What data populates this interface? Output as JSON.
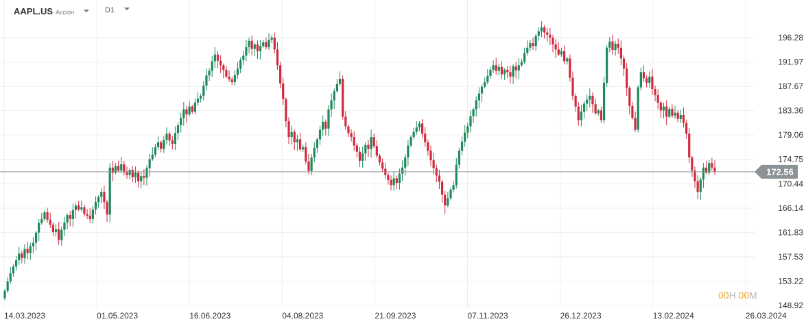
{
  "header": {
    "symbol": "AAPL.US",
    "instrument_type": "Acción",
    "timeframe": "D1"
  },
  "timer": {
    "hours": "00",
    "hours_unit": "H",
    "minutes": "00",
    "minutes_unit": "M"
  },
  "colors": {
    "up": "#1e8a5c",
    "down": "#d1293d",
    "grid": "#eeeeee",
    "price_line": "#8c9296",
    "timer_accent": "#f5a623"
  },
  "chart_data": {
    "type": "candlestick",
    "title": "AAPL.US",
    "x_tick_labels": [
      "14.03.2023",
      "01.05.2023",
      "16.06.2023",
      "04.08.2023",
      "21.09.2023",
      "07.11.2023",
      "26.12.2023",
      "13.02.2024",
      "26.03.2024"
    ],
    "y_tick_labels": [
      "196.28",
      "191.97",
      "187.67",
      "183.36",
      "179.06",
      "174.75",
      "170.44",
      "166.14",
      "161.83",
      "157.53",
      "153.22",
      "148.92"
    ],
    "ylim": [
      148.92,
      196.28
    ],
    "grid": true,
    "current_price": "172.56",
    "first_open": 150.2,
    "close": [
      151.5,
      153.2,
      154.6,
      155.8,
      156.9,
      158.1,
      157.3,
      158.9,
      158.2,
      159.4,
      160,
      161.8,
      163.5,
      164.2,
      165.4,
      164.1,
      163.2,
      161.9,
      162.4,
      160.5,
      162.3,
      163.6,
      164.9,
      164.2,
      165.8,
      166.6,
      165.9,
      166.3,
      165.1,
      164.8,
      164.2,
      165.9,
      167.2,
      168.1,
      169,
      167.2,
      165,
      173.3,
      172.4,
      173.6,
      172.8,
      173.9,
      172.5,
      172,
      172.9,
      171.6,
      172.4,
      170.9,
      171.8,
      171.5,
      173.2,
      174.8,
      175.6,
      176.9,
      177.8,
      176.6,
      178.2,
      179.3,
      178.1,
      177.5,
      179.4,
      180.8,
      182.1,
      183.6,
      182.7,
      184.1,
      183.2,
      184.8,
      185.5,
      186,
      187.8,
      189.6,
      190.4,
      192.1,
      193.3,
      192.2,
      191.4,
      190.6,
      189.4,
      188.9,
      188.4,
      189.7,
      190.8,
      192.3,
      193.1,
      194.6,
      195.7,
      194.3,
      195.1,
      193.9,
      194.8,
      195.5,
      194.6,
      195.9,
      196.3,
      194.2,
      191.4,
      188.2,
      185.4,
      181.5,
      178.7,
      179.6,
      177.8,
      178.3,
      176.5,
      176.9,
      174.4,
      172.7,
      175.1,
      176.8,
      178.3,
      180,
      181.4,
      180.2,
      183.6,
      185.2,
      186.8,
      188.1,
      189,
      182.3,
      180.6,
      179.4,
      178.7,
      177.2,
      176.1,
      174.5,
      175.8,
      177.3,
      176.6,
      178.7,
      177.1,
      175.4,
      174.2,
      173.1,
      172,
      171.1,
      170.2,
      171.4,
      170.6,
      172.2,
      173.3,
      175.1,
      177.2,
      178.7,
      179.6,
      180.4,
      181.1,
      179.3,
      177.8,
      176.3,
      174.6,
      173.2,
      171.9,
      170.8,
      168.5,
      166.6,
      167.9,
      169.4,
      170.2,
      173.8,
      176.3,
      177.9,
      179.5,
      180.6,
      182.4,
      183.6,
      185.2,
      186.4,
      187.6,
      188.4,
      189.5,
      190.6,
      191.4,
      190.4,
      191.1,
      189.8,
      190.6,
      190.2,
      189.4,
      191.2,
      190.5,
      191.4,
      192,
      193.6,
      194.5,
      195.3,
      194.8,
      196.6,
      197.4,
      198.1,
      197.2,
      196.8,
      196.3,
      195.1,
      194.2,
      193.3,
      193.9,
      192.1,
      192.6,
      189.2,
      186,
      184.1,
      181.7,
      183.2,
      184.6,
      185.3,
      186,
      184.5,
      182.9,
      183.4,
      181.7,
      188.3,
      194.5,
      195.6,
      194.1,
      195.2,
      194.5,
      192.6,
      190.8,
      187.4,
      184.2,
      182.1,
      180,
      187.5,
      190.2,
      189.1,
      188.3,
      189.4,
      187.2,
      186.1,
      184.8,
      183.4,
      184.1,
      182.3,
      183.7,
      182.5,
      183,
      181.9,
      182.6,
      181.2,
      179.3,
      175.1,
      172.8,
      170.9,
      169,
      171.2,
      173.3,
      172.4,
      174.1,
      173.3,
      172.6
    ]
  }
}
